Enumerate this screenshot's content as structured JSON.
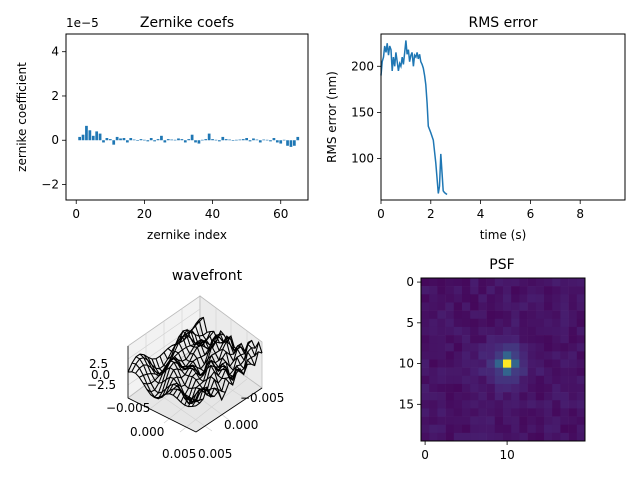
{
  "figure": {
    "accent": "#1f77b4"
  },
  "chart_data": [
    {
      "type": "bar",
      "title": "Zernike coefs",
      "xlabel": "zernike index",
      "ylabel": "zernike coefficient",
      "offset_text": "1e−5",
      "xlim": [
        -3,
        68
      ],
      "ylim": [
        -2.7,
        4.8
      ],
      "xticks": [
        0,
        20,
        40,
        60
      ],
      "yticks": [
        -2,
        0,
        2,
        4
      ],
      "x": [
        1,
        2,
        3,
        4,
        5,
        6,
        7,
        8,
        9,
        10,
        11,
        12,
        13,
        14,
        15,
        16,
        17,
        18,
        19,
        20,
        21,
        22,
        23,
        24,
        25,
        26,
        27,
        28,
        29,
        30,
        31,
        32,
        33,
        34,
        35,
        36,
        37,
        38,
        39,
        40,
        41,
        42,
        43,
        44,
        45,
        46,
        47,
        48,
        49,
        50,
        51,
        52,
        53,
        54,
        55,
        56,
        57,
        58,
        59,
        60,
        61,
        62,
        63,
        64,
        65
      ],
      "values": [
        0.15,
        0.25,
        0.65,
        0.45,
        0.2,
        0.4,
        0.3,
        -0.1,
        0.1,
        0.05,
        -0.2,
        0.15,
        0.08,
        0.1,
        -0.1,
        0.1,
        0.03,
        -0.02,
        0.05,
        0.02,
        -0.05,
        0.1,
        -0.05,
        0.05,
        0.2,
        -0.1,
        0.05,
        0.03,
        0.02,
        0.08,
        0.05,
        -0.1,
        0.05,
        0.25,
        -0.1,
        -0.15,
        0.02,
        0.05,
        0.3,
        0.05,
        0.02,
        -0.05,
        0.15,
        0.05,
        0.03,
        -0.02,
        0.02,
        0.03,
        0.05,
        0.1,
        -0.05,
        0.08,
        0.03,
        -0.1,
        0.03,
        0.02,
        -0.05,
        0.1,
        -0.1,
        -0.15,
        0.02,
        -0.25,
        -0.3,
        -0.25,
        0.15
      ]
    },
    {
      "type": "line",
      "title": "RMS error",
      "xlabel": "time (s)",
      "ylabel": "RMS error (nm)",
      "xlim": [
        0,
        9.8
      ],
      "ylim": [
        55,
        235
      ],
      "xticks": [
        0,
        2,
        4,
        6,
        8
      ],
      "yticks": [
        100,
        150,
        200
      ],
      "series": [
        {
          "x": [
            0,
            0.05,
            0.1,
            0.15,
            0.2,
            0.25,
            0.3,
            0.35,
            0.4,
            0.45,
            0.5,
            0.55,
            0.6,
            0.65,
            0.7,
            0.75,
            0.8,
            0.85,
            0.9,
            0.95,
            1.0,
            1.05,
            1.1,
            1.15,
            1.2,
            1.25,
            1.3,
            1.35,
            1.4,
            1.45,
            1.5,
            1.55,
            1.6,
            1.65,
            1.7,
            1.75,
            1.8,
            1.85,
            1.9,
            2.0,
            2.1,
            2.2,
            2.3,
            2.35,
            2.4,
            2.45,
            2.5,
            2.55,
            2.6,
            2.65
          ],
          "y": [
            190,
            205,
            210,
            222,
            215,
            225,
            212,
            222,
            218,
            195,
            210,
            200,
            215,
            205,
            195,
            203,
            200,
            210,
            202,
            215,
            228,
            213,
            218,
            205,
            212,
            215,
            200,
            212,
            210,
            215,
            208,
            213,
            205,
            202,
            198,
            190,
            180,
            160,
            135,
            128,
            120,
            95,
            62,
            70,
            105,
            85,
            65,
            63,
            62,
            61
          ],
          "color": "#1f77b4"
        }
      ]
    },
    {
      "type": "surface3d",
      "title": "wavefront",
      "axis_ticks_x": [
        "−0.005",
        "0.000",
        "0.005"
      ],
      "axis_ticks_y": [
        "−0.005",
        "0.000",
        "0.005"
      ],
      "axis_ticks_z": [
        "2.5",
        "0.0",
        "−2.5"
      ]
    },
    {
      "type": "heatmap",
      "title": "PSF",
      "size": [
        20,
        20
      ],
      "xticks": [
        0,
        10
      ],
      "yticks": [
        0,
        5,
        10,
        15
      ],
      "peak": [
        10,
        10
      ],
      "colormap": "viridis"
    }
  ]
}
